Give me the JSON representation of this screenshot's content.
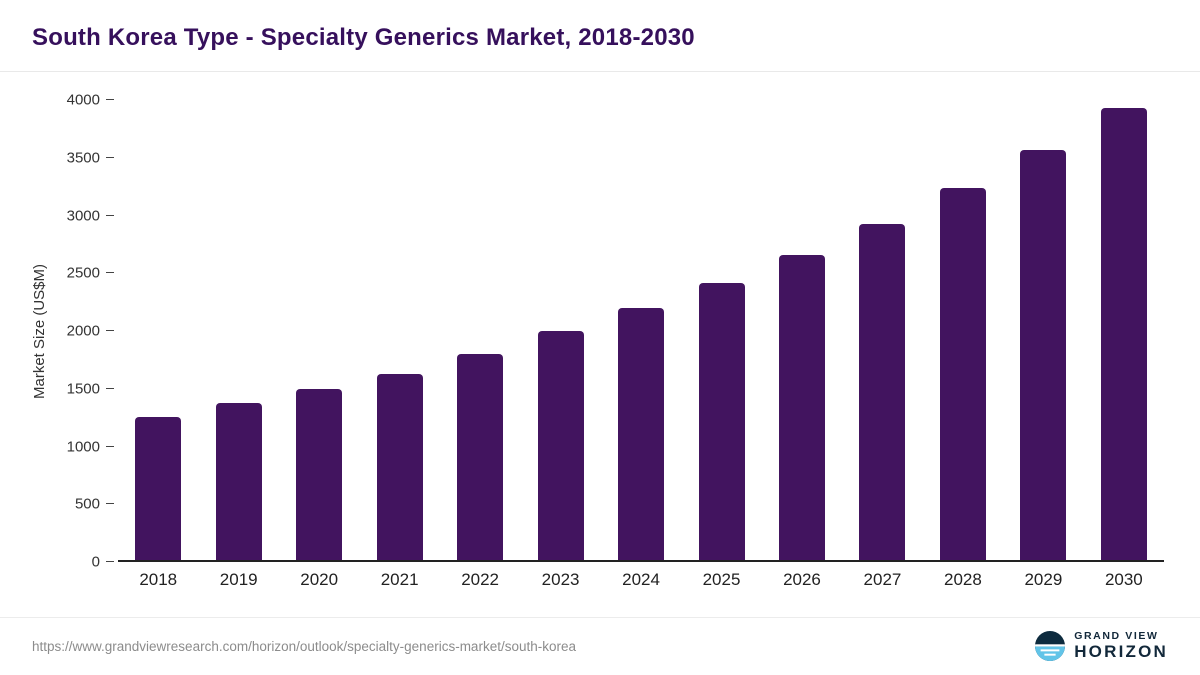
{
  "header": {
    "title": "South Korea Type - Specialty Generics Market, 2018-2030"
  },
  "chart_data": {
    "type": "bar",
    "title": "South Korea Type - Specialty Generics Market, 2018-2030",
    "categories": [
      "2018",
      "2019",
      "2020",
      "2021",
      "2022",
      "2023",
      "2024",
      "2025",
      "2026",
      "2027",
      "2028",
      "2029",
      "2030"
    ],
    "values": [
      1240,
      1365,
      1490,
      1620,
      1790,
      1990,
      2195,
      2410,
      2655,
      2925,
      3235,
      3565,
      3930
    ],
    "xlabel": "",
    "ylabel": "Market Size (US$M)",
    "ylim": [
      0,
      4000
    ],
    "yticks": [
      0,
      500,
      1000,
      1500,
      2000,
      2500,
      3000,
      3500,
      4000
    ],
    "grid": false,
    "legend": "none"
  },
  "footer": {
    "source_url": "https://www.grandviewresearch.com/horizon/outlook/specialty-generics-market/south-korea",
    "logo": {
      "line1": "GRAND VIEW",
      "line2": "HORIZON"
    }
  },
  "colors": {
    "bar": "#42145f",
    "title": "#36105c",
    "axis_text": "#333333",
    "footer_text": "#8c8c8c",
    "logo_navy": "#0d2b3e",
    "logo_blue": "#62c4e8"
  }
}
